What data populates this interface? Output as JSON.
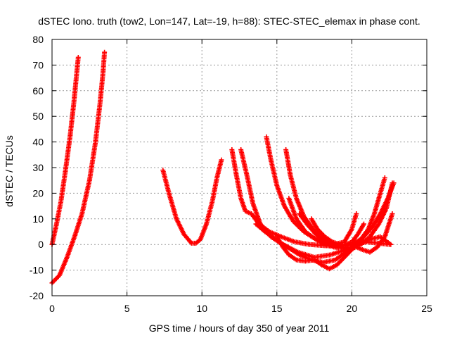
{
  "chart_data": {
    "type": "scatter",
    "title": "dSTEC Iono. truth (tow2, Lon=147, Lat=-19, h=88): STEC-STEC_elemax in phase cont.",
    "xlabel": "GPS time / hours of day 350 of year 2011",
    "ylabel": "dSTEC  / TECUs",
    "xlim": [
      0,
      25
    ],
    "ylim": [
      -20,
      80
    ],
    "xticks": [
      0,
      5,
      10,
      15,
      20,
      25
    ],
    "yticks": [
      -20,
      -10,
      0,
      10,
      20,
      30,
      40,
      50,
      60,
      70,
      80
    ],
    "grid": true,
    "marker": "+",
    "color": "#ff0000",
    "series": [
      {
        "x": [
          0.0,
          0.3,
          0.6,
          0.9,
          1.2,
          1.45,
          1.65,
          1.75
        ],
        "y": [
          0,
          8,
          17,
          29,
          42,
          55,
          67,
          73
        ]
      },
      {
        "x": [
          0.0,
          0.5,
          1.0,
          1.5,
          2.0,
          2.5,
          2.9,
          3.2,
          3.4,
          3.5
        ],
        "y": [
          -15,
          -12,
          -5,
          3,
          12,
          25,
          40,
          55,
          67,
          75
        ]
      },
      {
        "x": [
          7.4,
          7.8,
          8.3,
          8.8,
          9.3,
          9.6,
          9.9,
          10.3,
          10.7,
          11.0,
          11.3
        ],
        "y": [
          29,
          20,
          10,
          4,
          0.5,
          0.5,
          2,
          8,
          17,
          26,
          33
        ]
      },
      {
        "x": [
          12.0,
          12.3,
          12.6,
          12.9,
          13.3,
          13.8,
          14.5,
          15.3,
          16.2,
          17.2,
          18.3,
          19.3,
          20.2,
          21.0,
          21.8,
          22.5
        ],
        "y": [
          37,
          27,
          18,
          13,
          12,
          8,
          5,
          3,
          1,
          0,
          -0.5,
          -0.5,
          0,
          1,
          0.5,
          0
        ]
      },
      {
        "x": [
          12.6,
          13.0,
          13.4,
          13.9,
          14.6,
          15.4,
          16.4,
          17.5,
          18.6,
          19.6,
          20.4,
          21.2,
          21.9,
          22.6
        ],
        "y": [
          37,
          27,
          16,
          8,
          3,
          0,
          -3,
          -5,
          -4,
          -2,
          0,
          2,
          3,
          0
        ]
      },
      {
        "x": [
          14.3,
          14.6,
          15.0,
          15.5,
          16.1,
          16.8,
          17.6,
          18.4,
          19.2,
          19.8,
          20.3,
          20.7,
          21.2,
          21.7,
          22.2,
          22.7
        ],
        "y": [
          42,
          33,
          23,
          15,
          9,
          5,
          2,
          0,
          -1,
          -2,
          -1,
          -2,
          -3,
          -1,
          3,
          12
        ]
      },
      {
        "x": [
          15.6,
          15.9,
          16.3,
          16.8,
          17.4,
          18.1,
          18.8,
          19.5,
          20.0,
          20.3
        ],
        "y": [
          37,
          27,
          18,
          11,
          6,
          2,
          0,
          1,
          6,
          12
        ]
      },
      {
        "x": [
          15.8,
          16.3,
          16.9,
          17.6,
          18.4,
          19.2,
          20.0,
          20.6,
          21.1,
          21.5,
          21.9,
          22.2
        ],
        "y": [
          18,
          10,
          5,
          2,
          -0.5,
          -1,
          0,
          2,
          6,
          12,
          20,
          26
        ]
      },
      {
        "x": [
          17.3,
          17.7,
          18.2,
          18.7,
          19.2,
          19.6,
          20.0,
          20.4,
          20.8
        ],
        "y": [
          10,
          6,
          3,
          1,
          0,
          0,
          1,
          4,
          8
        ]
      },
      {
        "x": [
          13.6,
          14.2,
          14.9,
          15.7,
          16.5,
          17.3,
          18.1,
          18.9,
          19.6,
          20.2,
          20.8,
          21.4,
          21.9,
          22.4,
          22.8
        ],
        "y": [
          8,
          5,
          2,
          -1,
          -4,
          -6,
          -7,
          -6,
          -3,
          0,
          3,
          7,
          12,
          18,
          24
        ]
      },
      {
        "x": [
          15.0,
          15.4,
          15.8,
          16.3,
          16.9,
          17.5,
          18.0,
          18.5,
          19.0,
          19.5,
          20.0,
          20.5,
          21.0
        ],
        "y": [
          3,
          -1,
          -4,
          -6,
          -6.5,
          -6,
          -8,
          -9.5,
          -8,
          -5,
          -2,
          1,
          5
        ]
      },
      {
        "x": [
          16.5,
          17.0,
          17.6,
          18.2,
          18.8,
          19.4,
          20.0,
          20.6,
          21.2,
          21.8,
          22.3,
          22.7
        ],
        "y": [
          12,
          8,
          4,
          1,
          -1,
          -1.5,
          -1,
          0,
          3,
          8,
          14,
          24
        ]
      }
    ]
  }
}
